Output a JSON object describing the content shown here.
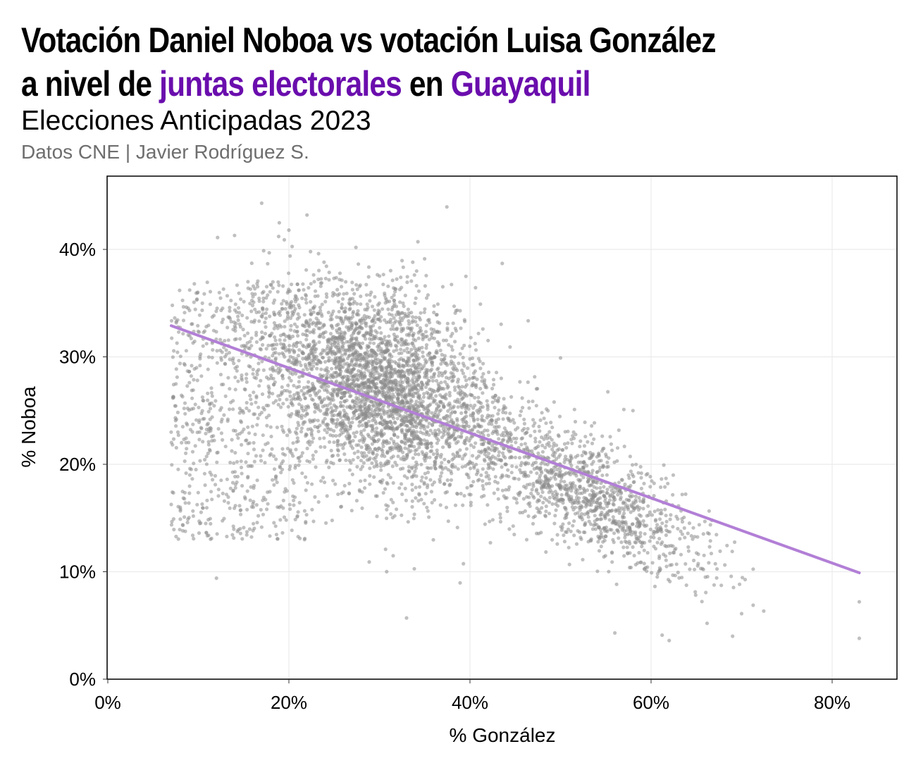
{
  "header": {
    "title_line1": "Votación Daniel Noboa vs votación Luisa González",
    "title_line2_prefix": "a nivel de ",
    "title_line2_highlight1": "juntas electorales",
    "title_line2_middle": " en ",
    "title_line2_highlight2": "Guayaquil",
    "subtitle": "Elecciones Anticipadas 2023",
    "caption": "Datos CNE | Javier Rodríguez S."
  },
  "colors": {
    "highlight": "#6a0dad",
    "points": "#8c8c8c",
    "trend_line": "#b27fd6",
    "grid": "#ebebeb"
  },
  "chart_data": {
    "type": "scatter",
    "title": "Votación Daniel Noboa vs votación Luisa González a nivel de juntas electorales en Guayaquil",
    "subtitle": "Elecciones Anticipadas 2023",
    "xlabel": "% González",
    "ylabel": "% Noboa",
    "xlim": [
      0,
      87
    ],
    "ylim": [
      0,
      46
    ],
    "xticks": [
      0,
      20,
      40,
      60,
      80
    ],
    "yticks": [
      0,
      10,
      20,
      30,
      40
    ],
    "xtick_labels": [
      "0%",
      "20%",
      "40%",
      "60%",
      "80%"
    ],
    "ytick_labels": [
      "0%",
      "10%",
      "20%",
      "30%",
      "40%"
    ],
    "grid": true,
    "trend_line": {
      "x": [
        7,
        83
      ],
      "y": [
        32.9,
        9.9
      ]
    },
    "point_count": 5200,
    "point_distribution": {
      "main_cluster": {
        "x_mean": 30,
        "x_sd": 6,
        "y_mean": 27,
        "y_sd": 4.8,
        "corr": -0.3,
        "share": 0.6
      },
      "low_x_cloud": {
        "x_range": [
          7,
          23
        ],
        "y_range": [
          13,
          37
        ],
        "share": 0.15
      },
      "high_x_tail": {
        "x_mean": 52,
        "x_sd": 7,
        "y_slope": -0.42,
        "y_intercept": 39.5,
        "y_sd": 2.6,
        "share": 0.25
      }
    },
    "notable_points": [
      {
        "x": 17,
        "y": 44.3
      },
      {
        "x": 22,
        "y": 43.2
      },
      {
        "x": 14,
        "y": 41.3
      },
      {
        "x": 20,
        "y": 41.8
      },
      {
        "x": 7,
        "y": 23
      },
      {
        "x": 8,
        "y": 16
      },
      {
        "x": 12,
        "y": 9.4
      },
      {
        "x": 33,
        "y": 5.7
      },
      {
        "x": 56,
        "y": 4.3
      },
      {
        "x": 62,
        "y": 3.6
      },
      {
        "x": 69,
        "y": 4.0
      },
      {
        "x": 83,
        "y": 3.8
      },
      {
        "x": 83,
        "y": 7.2
      },
      {
        "x": 70,
        "y": 6.1
      },
      {
        "x": 50,
        "y": 29.9
      },
      {
        "x": 57,
        "y": 25.1
      },
      {
        "x": 58,
        "y": 25.0
      },
      {
        "x": 66,
        "y": 9.5
      }
    ]
  }
}
